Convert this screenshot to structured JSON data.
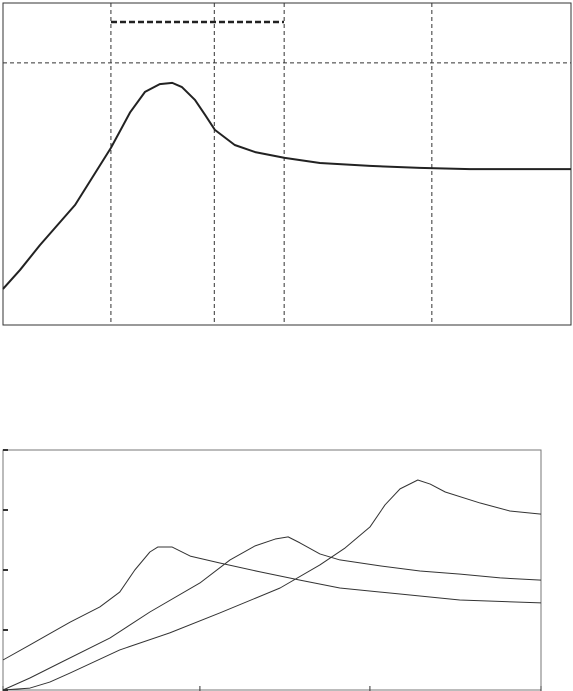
{
  "chart_data": [
    {
      "type": "line",
      "grid": true,
      "color": "#222222",
      "xlim": [
        0,
        100
      ],
      "ylim": [
        0,
        100
      ],
      "xticks": [
        19,
        37.2,
        49.5,
        75.5
      ],
      "yticks": [
        81.4
      ],
      "x": [
        0,
        3,
        6.5,
        12.7,
        19,
        22.4,
        25,
        27.6,
        29.8,
        31.5,
        33.8,
        35.6,
        37.3,
        40.8,
        44.4,
        49.6,
        55.8,
        64.6,
        73.4,
        82.2,
        100
      ],
      "values": [
        11.2,
        17.1,
        24.8,
        37.3,
        55,
        66.1,
        72.4,
        74.8,
        75.2,
        73.9,
        69.9,
        65.2,
        60.6,
        55.9,
        53.7,
        51.9,
        50.3,
        49.4,
        48.8,
        48.4,
        48.4
      ]
    },
    {
      "type": "line",
      "grid": false,
      "xlim": [
        0,
        100
      ],
      "ylim": [
        0,
        100
      ],
      "xticks": [
        0,
        36.6,
        68.2,
        100
      ],
      "yticks": [
        0,
        25,
        50,
        75,
        100
      ],
      "series": [
        {
          "color": "#333333",
          "x": [
            0,
            5,
            12.5,
            18,
            21.7,
            24.5,
            27.3,
            28.8,
            31.4,
            34.8,
            40.3,
            47.8,
            55.2,
            62.6,
            73.8,
            84.9,
            100
          ],
          "values": [
            12.5,
            18.8,
            28.3,
            34.6,
            40.8,
            50,
            57.5,
            59.6,
            59.6,
            55.8,
            52.9,
            49.2,
            45.8,
            42.5,
            40,
            37.5,
            36.3
          ]
        },
        {
          "color": "#333333",
          "x": [
            0,
            5,
            10.6,
            19.9,
            27.3,
            36.6,
            42.2,
            46.8,
            50.6,
            53,
            55.2,
            58.9,
            62.6,
            70.1,
            77.5,
            85,
            92.4,
            100
          ],
          "values": [
            0,
            5,
            11.3,
            21.7,
            32.5,
            44.6,
            54.2,
            60,
            62.9,
            63.8,
            61.3,
            56.7,
            54.2,
            51.7,
            49.6,
            48.3,
            46.7,
            45.8
          ]
        },
        {
          "color": "#333333",
          "x": [
            0,
            5,
            8.7,
            12.5,
            21.7,
            31,
            40.3,
            51.5,
            58.9,
            63.6,
            68.2,
            71,
            73.8,
            77.1,
            79.4,
            82.2,
            88.7,
            94.2,
            100
          ],
          "values": [
            0,
            0.8,
            3.3,
            7.1,
            16.7,
            23.8,
            32.1,
            42.5,
            52.1,
            59.2,
            67.9,
            77.1,
            83.8,
            87.5,
            85.8,
            82.5,
            77.9,
            74.6,
            73.3
          ]
        }
      ]
    }
  ]
}
